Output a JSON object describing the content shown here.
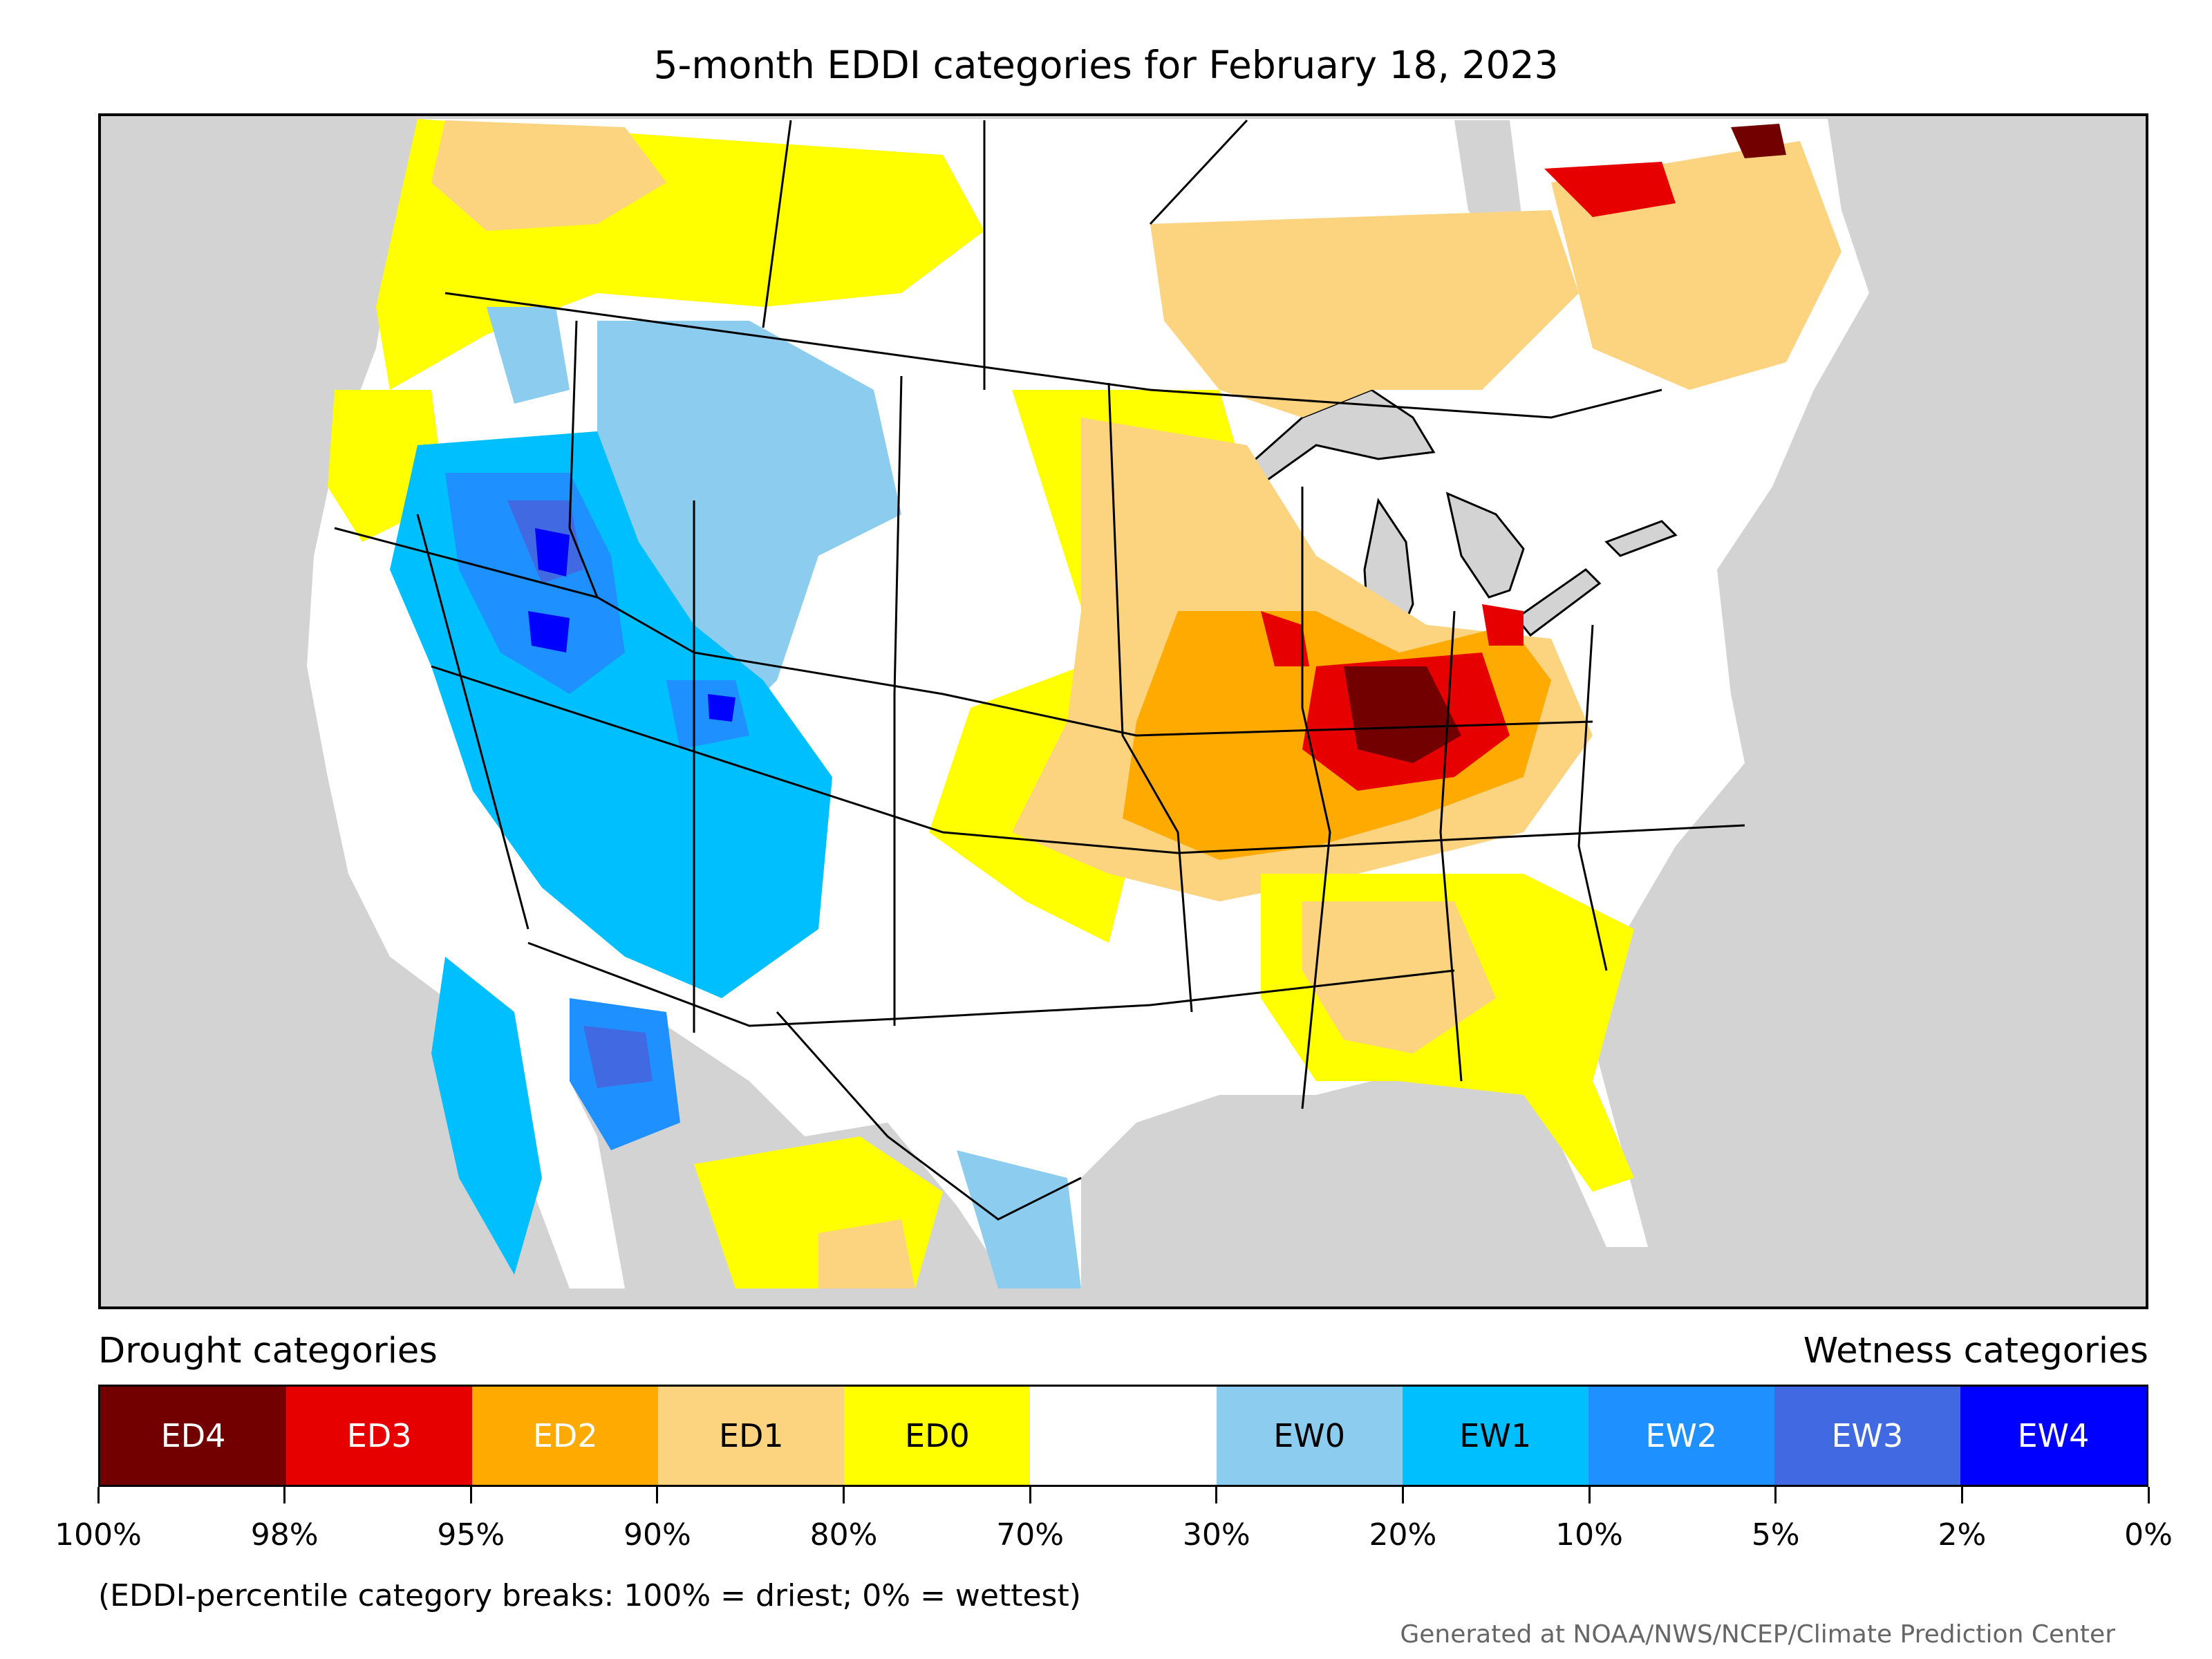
{
  "title": "5-month EDDI categories for February 18, 2023",
  "legend": {
    "drought_heading": "Drought categories",
    "wetness_heading": "Wetness categories",
    "categories": [
      {
        "label": "ED4",
        "color": "#730000",
        "text_color": "#ffffff"
      },
      {
        "label": "ED3",
        "color": "#e60000",
        "text_color": "#ffffff"
      },
      {
        "label": "ED2",
        "color": "#ffaa00",
        "text_color": "#ffffff"
      },
      {
        "label": "ED1",
        "color": "#fcd37f",
        "text_color": "#000000"
      },
      {
        "label": "ED0",
        "color": "#ffff00",
        "text_color": "#000000"
      },
      {
        "label": "",
        "color": "#ffffff",
        "text_color": "#000000"
      },
      {
        "label": "EW0",
        "color": "#8ccdef",
        "text_color": "#000000"
      },
      {
        "label": "EW1",
        "color": "#00bfff",
        "text_color": "#000000"
      },
      {
        "label": "EW2",
        "color": "#1e90ff",
        "text_color": "#ffffff"
      },
      {
        "label": "EW3",
        "color": "#4169e1",
        "text_color": "#ffffff"
      },
      {
        "label": "EW4",
        "color": "#0000ff",
        "text_color": "#ffffff"
      }
    ],
    "breaks": [
      "100%",
      "98%",
      "95%",
      "90%",
      "80%",
      "70%",
      "30%",
      "20%",
      "10%",
      "5%",
      "2%",
      "0%"
    ]
  },
  "footnote": "(EDDI-percentile category breaks: 100% = driest; 0% = wettest)",
  "credit": "Generated at NOAA/NWS/NCEP/Climate Prediction Center",
  "colors": {
    "ocean": "#d3d3d3",
    "land": "#ffffff",
    "border": "#000000"
  }
}
